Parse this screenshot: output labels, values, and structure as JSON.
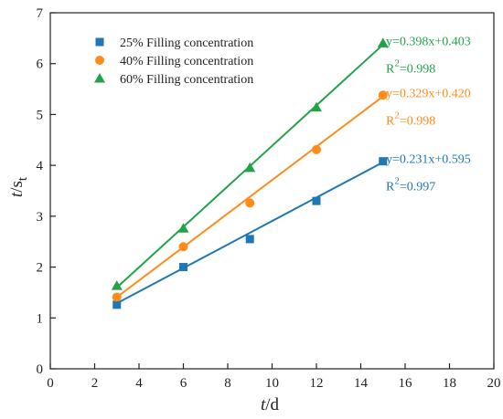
{
  "chart_data": {
    "type": "scatter",
    "xlabel": {
      "main": "t",
      "rest": "/d"
    },
    "ylabel": {
      "main": "t",
      "slash": "/s",
      "sub": "t"
    },
    "xlim": [
      0,
      20
    ],
    "ylim": [
      0,
      7
    ],
    "xticks": [
      0,
      2,
      4,
      6,
      8,
      10,
      12,
      14,
      16,
      18,
      20
    ],
    "yticks": [
      0,
      1,
      2,
      3,
      4,
      5,
      6,
      7
    ],
    "grid": false,
    "legend_position": "top-left",
    "series": [
      {
        "name": "25% Filling concentration",
        "marker": "square",
        "color": "#1f77b4",
        "x": [
          3,
          6,
          9,
          12,
          15
        ],
        "y": [
          1.26,
          2.0,
          2.55,
          3.3,
          4.08
        ],
        "fit": {
          "slope": 0.231,
          "intercept": 0.595,
          "x_range": [
            3,
            15
          ]
        },
        "equation": "y=0.231x+0.595",
        "r2_prefix": "R",
        "r2_sup": "2",
        "r2_value": "=0.997"
      },
      {
        "name": "40% Filling concentration",
        "marker": "circle",
        "color": "#ff8c1a",
        "x": [
          3,
          6,
          9,
          12,
          15
        ],
        "y": [
          1.41,
          2.4,
          3.26,
          4.31,
          5.38
        ],
        "fit": {
          "slope": 0.329,
          "intercept": 0.42,
          "x_range": [
            3,
            15
          ]
        },
        "equation": "y=0.329x+0.420",
        "r2_prefix": "R",
        "r2_sup": "2",
        "r2_value": "=0.998"
      },
      {
        "name": "60% Filling concentration",
        "marker": "triangle",
        "color": "#22a34a",
        "x": [
          3,
          6,
          9,
          12,
          15
        ],
        "y": [
          1.63,
          2.76,
          3.95,
          5.14,
          6.4
        ],
        "fit": {
          "slope": 0.398,
          "intercept": 0.403,
          "x_range": [
            3,
            15
          ]
        },
        "equation": "y=0.398x+0.403",
        "r2_prefix": "R",
        "r2_sup": "2",
        "r2_value": "=0.998"
      }
    ]
  }
}
